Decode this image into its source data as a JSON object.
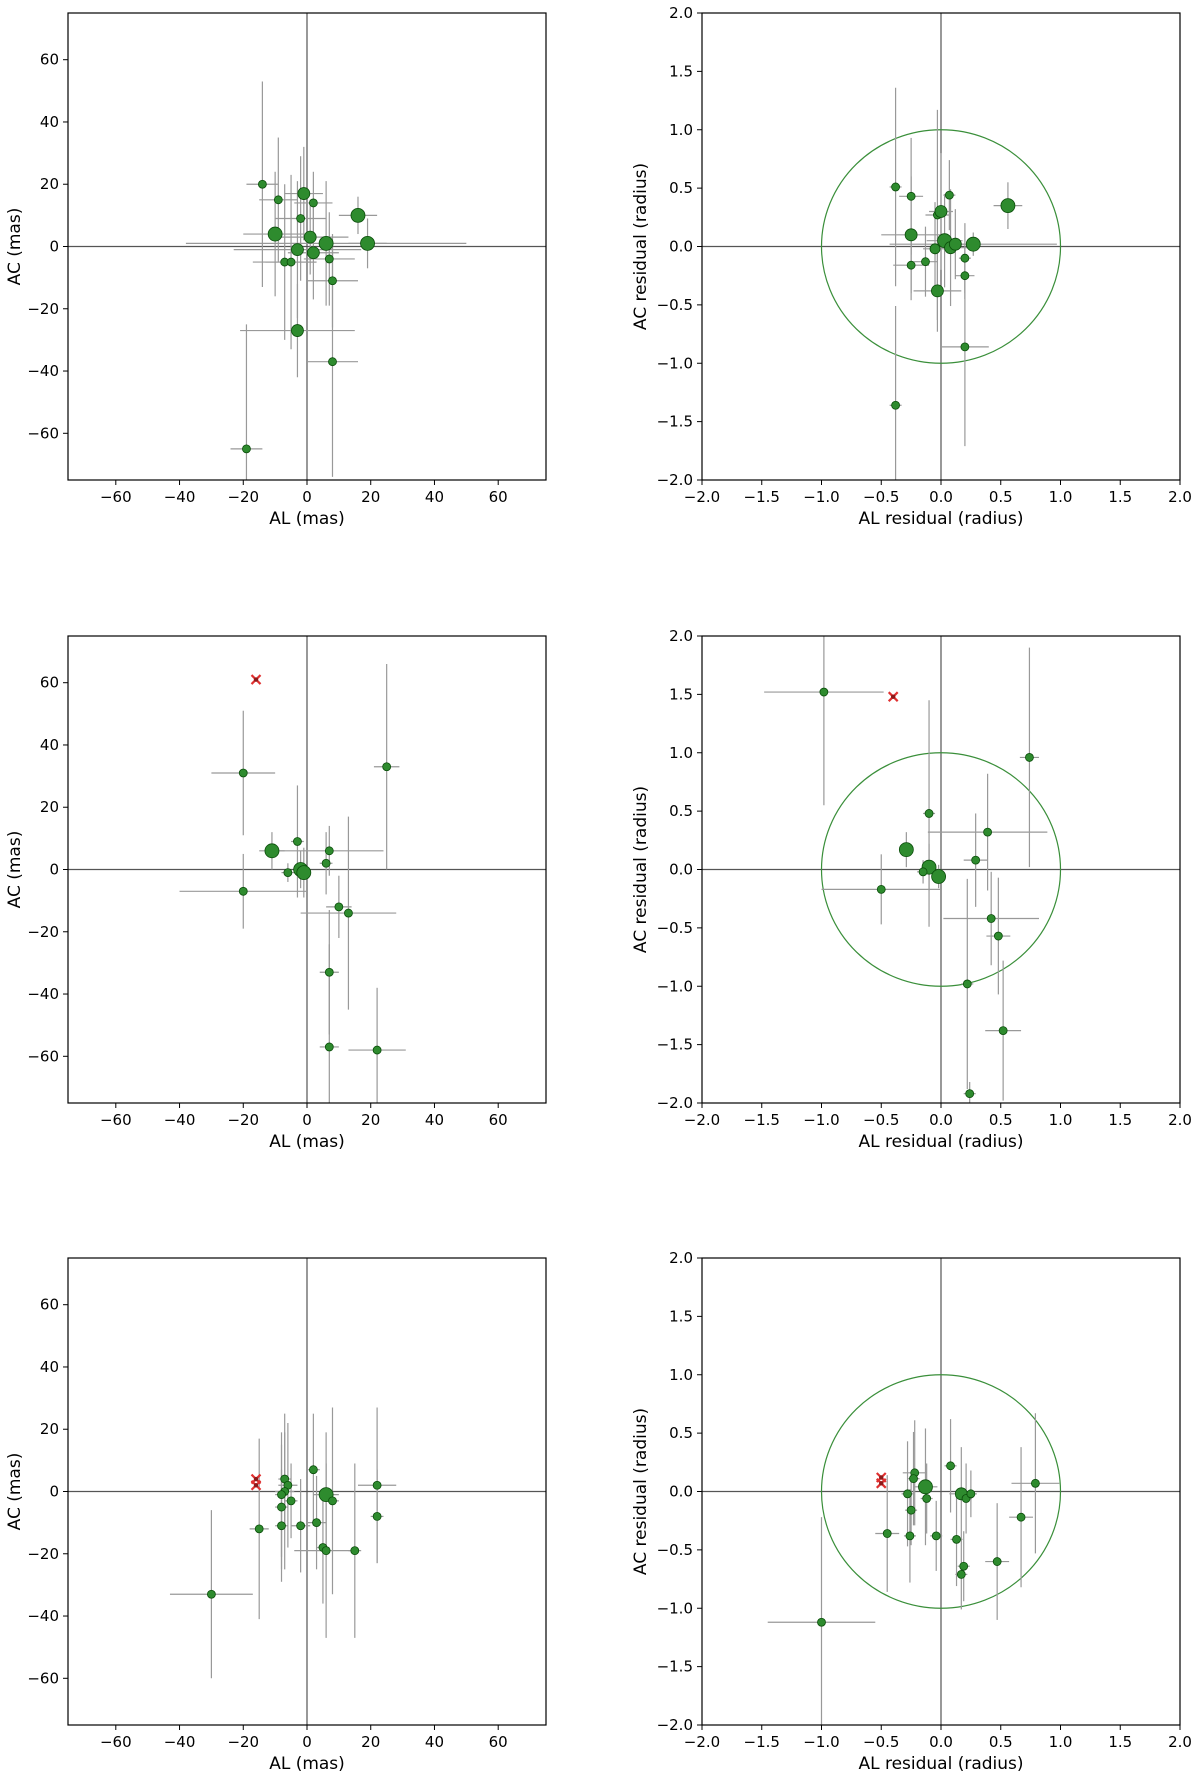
{
  "colors": {
    "point": "#2e8b2e",
    "point_edge": "#0a4d0a",
    "errorbar": "#999999",
    "circle": "#3a8f3a",
    "outlier": "#e03030",
    "zero_line": "#555555"
  },
  "chart_data": [
    {
      "type": "scatter",
      "name": "panel-1-left",
      "row": 0,
      "col": 0,
      "xlabel": "AL (mas)",
      "ylabel": "AC (mas)",
      "xlim": [
        -75,
        75
      ],
      "ylim": [
        -75,
        75
      ],
      "xticks": [
        -60,
        -40,
        -20,
        0,
        20,
        40,
        60
      ],
      "yticks": [
        -60,
        -40,
        -20,
        0,
        20,
        40,
        60
      ],
      "xtick_labels": [
        "−60",
        "−40",
        "−20",
        "0",
        "20",
        "40",
        "60"
      ],
      "ytick_labels": [
        "−60",
        "−40",
        "−20",
        "0",
        "20",
        "40",
        "60"
      ],
      "unit_circle": false,
      "points": [
        {
          "x": -14,
          "y": 20,
          "xerr": 5,
          "yerr": 33,
          "s": 4
        },
        {
          "x": -9,
          "y": 15,
          "xerr": 6,
          "yerr": 20,
          "s": 4
        },
        {
          "x": -10,
          "y": 4,
          "xerr": 10,
          "yerr": 20,
          "s": 7
        },
        {
          "x": -7,
          "y": -5,
          "xerr": 10,
          "yerr": 25,
          "s": 4
        },
        {
          "x": -5,
          "y": -5,
          "xerr": 8,
          "yerr": 28,
          "s": 4
        },
        {
          "x": -1,
          "y": 17,
          "xerr": 6,
          "yerr": 15,
          "s": 6
        },
        {
          "x": 2,
          "y": 14,
          "xerr": 6,
          "yerr": 10,
          "s": 4
        },
        {
          "x": -2,
          "y": 9,
          "xerr": 8,
          "yerr": 20,
          "s": 4
        },
        {
          "x": 1,
          "y": 3,
          "xerr": 12,
          "yerr": 12,
          "s": 6
        },
        {
          "x": -3,
          "y": -1,
          "xerr": 20,
          "yerr": 22,
          "s": 6
        },
        {
          "x": 2,
          "y": -2,
          "xerr": 8,
          "yerr": 15,
          "s": 6
        },
        {
          "x": 6,
          "y": 1,
          "xerr": 44,
          "yerr": 20,
          "s": 7
        },
        {
          "x": 7,
          "y": -4,
          "xerr": 8,
          "yerr": 15,
          "s": 4
        },
        {
          "x": 16,
          "y": 10,
          "xerr": 6,
          "yerr": 6,
          "s": 7
        },
        {
          "x": 19,
          "y": 1,
          "xerr": 6,
          "yerr": 8,
          "s": 7
        },
        {
          "x": 8,
          "y": -11,
          "xerr": 8,
          "yerr": 15,
          "s": 4
        },
        {
          "x": -3,
          "y": -27,
          "xerr": 18,
          "yerr": 15,
          "s": 6
        },
        {
          "x": 8,
          "y": -37,
          "xerr": 8,
          "yerr": 37,
          "s": 4
        },
        {
          "x": -19,
          "y": -65,
          "xerr": 5,
          "yerr": 40,
          "s": 4
        }
      ],
      "outliers": []
    },
    {
      "type": "scatter",
      "name": "panel-1-right",
      "row": 0,
      "col": 1,
      "xlabel": "AL residual (radius)",
      "ylabel": "AC residual (radius)",
      "xlim": [
        -2,
        2
      ],
      "ylim": [
        -2,
        2
      ],
      "xticks": [
        -2,
        -1.5,
        -1,
        -0.5,
        0,
        0.5,
        1,
        1.5,
        2
      ],
      "yticks": [
        -2,
        -1.5,
        -1,
        -0.5,
        0,
        0.5,
        1,
        1.5,
        2
      ],
      "xtick_labels": [
        "−2.0",
        "−1.5",
        "−1.0",
        "−0.5",
        "0.0",
        "0.5",
        "1.0",
        "1.5",
        "2.0"
      ],
      "ytick_labels": [
        "−2.0",
        "−1.5",
        "−1.0",
        "−0.5",
        "0.0",
        "0.5",
        "1.0",
        "1.5",
        "2.0"
      ],
      "unit_circle": true,
      "points": [
        {
          "x": -0.38,
          "y": 0.51,
          "xerr": 0.05,
          "yerr": 0.85,
          "s": 4
        },
        {
          "x": -0.25,
          "y": 0.43,
          "xerr": 0.1,
          "yerr": 0.5,
          "s": 4
        },
        {
          "x": -0.25,
          "y": 0.1,
          "xerr": 0.25,
          "yerr": 0.5,
          "s": 6
        },
        {
          "x": -0.25,
          "y": -0.16,
          "xerr": 0.15,
          "yerr": 0.3,
          "s": 4
        },
        {
          "x": -0.13,
          "y": -0.13,
          "xerr": 0.1,
          "yerr": 0.3,
          "s": 4
        },
        {
          "x": -0.05,
          "y": -0.02,
          "xerr": 0.1,
          "yerr": 0.4,
          "s": 5
        },
        {
          "x": -0.03,
          "y": 0.27,
          "xerr": 0.1,
          "yerr": 0.9,
          "s": 4
        },
        {
          "x": 0.0,
          "y": 0.3,
          "xerr": 0.1,
          "yerr": 0.5,
          "s": 6
        },
        {
          "x": 0.03,
          "y": 0.05,
          "xerr": 0.15,
          "yerr": 0.4,
          "s": 7
        },
        {
          "x": 0.07,
          "y": 0.44,
          "xerr": 0.05,
          "yerr": 0.3,
          "s": 4
        },
        {
          "x": 0.08,
          "y": -0.01,
          "xerr": 0.15,
          "yerr": 0.5,
          "s": 6
        },
        {
          "x": 0.12,
          "y": 0.02,
          "xerr": 0.15,
          "yerr": 0.3,
          "s": 6
        },
        {
          "x": -0.03,
          "y": -0.38,
          "xerr": 0.2,
          "yerr": 0.35,
          "s": 6
        },
        {
          "x": 0.2,
          "y": -0.1,
          "xerr": 0.05,
          "yerr": 0.3,
          "s": 4
        },
        {
          "x": 0.27,
          "y": 0.02,
          "xerr": 0.7,
          "yerr": 0.1,
          "s": 7
        },
        {
          "x": 0.2,
          "y": -0.25,
          "xerr": 0.08,
          "yerr": 0.2,
          "s": 4
        },
        {
          "x": 0.56,
          "y": 0.35,
          "xerr": 0.12,
          "yerr": 0.2,
          "s": 7
        },
        {
          "x": 0.2,
          "y": -0.86,
          "xerr": 0.2,
          "yerr": 0.85,
          "s": 4
        },
        {
          "x": -0.38,
          "y": -1.36,
          "xerr": 0.05,
          "yerr": 0.85,
          "s": 4
        }
      ],
      "outliers": []
    },
    {
      "type": "scatter",
      "name": "panel-2-left",
      "row": 1,
      "col": 0,
      "xlabel": "AL (mas)",
      "ylabel": "AC (mas)",
      "xlim": [
        -75,
        75
      ],
      "ylim": [
        -75,
        75
      ],
      "xticks": [
        -60,
        -40,
        -20,
        0,
        20,
        40,
        60
      ],
      "yticks": [
        -60,
        -40,
        -20,
        0,
        20,
        40,
        60
      ],
      "xtick_labels": [
        "−60",
        "−40",
        "−20",
        "0",
        "20",
        "40",
        "60"
      ],
      "ytick_labels": [
        "−60",
        "−40",
        "−20",
        "0",
        "20",
        "40",
        "60"
      ],
      "unit_circle": false,
      "points": [
        {
          "x": -20,
          "y": 31,
          "xerr": 10,
          "yerr": 20,
          "s": 4
        },
        {
          "x": 25,
          "y": 33,
          "xerr": 4,
          "yerr": 33,
          "s": 4
        },
        {
          "x": -3,
          "y": 9,
          "xerr": 2,
          "yerr": 18,
          "s": 4
        },
        {
          "x": 7,
          "y": 6,
          "xerr": 17,
          "yerr": 8,
          "s": 4
        },
        {
          "x": -11,
          "y": 6,
          "xerr": 4,
          "yerr": 6,
          "s": 7
        },
        {
          "x": 6,
          "y": 2,
          "xerr": 2,
          "yerr": 10,
          "s": 4
        },
        {
          "x": -2,
          "y": 0,
          "xerr": 2,
          "yerr": 6,
          "s": 7
        },
        {
          "x": -1,
          "y": -1,
          "xerr": 2,
          "yerr": 8,
          "s": 7
        },
        {
          "x": -6,
          "y": -1,
          "xerr": 2,
          "yerr": 3,
          "s": 4
        },
        {
          "x": -20,
          "y": -7,
          "xerr": 20,
          "yerr": 12,
          "s": 4
        },
        {
          "x": 10,
          "y": -12,
          "xerr": 4,
          "yerr": 10,
          "s": 4
        },
        {
          "x": 13,
          "y": -14,
          "xerr": 15,
          "yerr": 31,
          "s": 4
        },
        {
          "x": 7,
          "y": -33,
          "xerr": 3,
          "yerr": 20,
          "s": 4
        },
        {
          "x": 7,
          "y": -57,
          "xerr": 3,
          "yerr": 33,
          "s": 4
        },
        {
          "x": 22,
          "y": -58,
          "xerr": 9,
          "yerr": 20,
          "s": 4
        }
      ],
      "outliers": [
        {
          "x": -16,
          "y": 61
        }
      ]
    },
    {
      "type": "scatter",
      "name": "panel-2-right",
      "row": 1,
      "col": 1,
      "xlabel": "AL residual (radius)",
      "ylabel": "AC residual (radius)",
      "xlim": [
        -2,
        2
      ],
      "ylim": [
        -2,
        2
      ],
      "xticks": [
        -2,
        -1.5,
        -1,
        -0.5,
        0,
        0.5,
        1,
        1.5,
        2
      ],
      "yticks": [
        -2,
        -1.5,
        -1,
        -0.5,
        0,
        0.5,
        1,
        1.5,
        2
      ],
      "xtick_labels": [
        "−2.0",
        "−1.5",
        "−1.0",
        "−0.5",
        "0.0",
        "0.5",
        "1.0",
        "1.5",
        "2.0"
      ],
      "ytick_labels": [
        "−2.0",
        "−1.5",
        "−1.0",
        "−0.5",
        "0.0",
        "0.5",
        "1.0",
        "1.5",
        "2.0"
      ],
      "unit_circle": true,
      "points": [
        {
          "x": -0.98,
          "y": 1.52,
          "xerr": 0.5,
          "yerr": 0.97,
          "s": 4
        },
        {
          "x": 0.74,
          "y": 0.96,
          "xerr": 0.08,
          "yerr": 0.94,
          "s": 4
        },
        {
          "x": -0.1,
          "y": 0.48,
          "xerr": 0.05,
          "yerr": 0.97,
          "s": 4
        },
        {
          "x": 0.39,
          "y": 0.32,
          "xerr": 0.5,
          "yerr": 0.5,
          "s": 4
        },
        {
          "x": -0.29,
          "y": 0.17,
          "xerr": 0.05,
          "yerr": 0.15,
          "s": 7
        },
        {
          "x": 0.29,
          "y": 0.08,
          "xerr": 0.1,
          "yerr": 0.4,
          "s": 4
        },
        {
          "x": -0.1,
          "y": 0.02,
          "xerr": 0.05,
          "yerr": 0.2,
          "s": 7
        },
        {
          "x": -0.15,
          "y": -0.02,
          "xerr": 0.05,
          "yerr": 0.1,
          "s": 4
        },
        {
          "x": -0.02,
          "y": -0.06,
          "xerr": 0.05,
          "yerr": 0.1,
          "s": 7
        },
        {
          "x": -0.5,
          "y": -0.17,
          "xerr": 0.5,
          "yerr": 0.3,
          "s": 4
        },
        {
          "x": 0.42,
          "y": -0.42,
          "xerr": 0.4,
          "yerr": 0.4,
          "s": 4
        },
        {
          "x": 0.48,
          "y": -0.57,
          "xerr": 0.1,
          "yerr": 0.5,
          "s": 4
        },
        {
          "x": 0.22,
          "y": -0.98,
          "xerr": 0.05,
          "yerr": 0.9,
          "s": 4
        },
        {
          "x": 0.52,
          "y": -1.38,
          "xerr": 0.15,
          "yerr": 0.6,
          "s": 4
        },
        {
          "x": 0.24,
          "y": -1.92,
          "xerr": 0.05,
          "yerr": 0.1,
          "s": 4
        }
      ],
      "outliers": [
        {
          "x": -0.4,
          "y": 1.48
        }
      ]
    },
    {
      "type": "scatter",
      "name": "panel-3-left",
      "row": 2,
      "col": 0,
      "xlabel": "AL (mas)",
      "ylabel": "AC (mas)",
      "xlim": [
        -75,
        75
      ],
      "ylim": [
        -75,
        75
      ],
      "xticks": [
        -60,
        -40,
        -20,
        0,
        20,
        40,
        60
      ],
      "yticks": [
        -60,
        -40,
        -20,
        0,
        20,
        40,
        60
      ],
      "xtick_labels": [
        "−60",
        "−40",
        "−20",
        "0",
        "20",
        "40",
        "60"
      ],
      "ytick_labels": [
        "−60",
        "−40",
        "−20",
        "0",
        "20",
        "40",
        "60"
      ],
      "unit_circle": false,
      "points": [
        {
          "x": 2,
          "y": 7,
          "xerr": 2,
          "yerr": 18,
          "s": 4
        },
        {
          "x": -7,
          "y": 4,
          "xerr": 2,
          "yerr": 15,
          "s": 4
        },
        {
          "x": -6,
          "y": 2,
          "xerr": 3,
          "yerr": 20,
          "s": 4
        },
        {
          "x": -7,
          "y": 0,
          "xerr": 3,
          "yerr": 25,
          "s": 4
        },
        {
          "x": -8,
          "y": -1,
          "xerr": 2,
          "yerr": 20,
          "s": 4
        },
        {
          "x": -5,
          "y": -3,
          "xerr": 2,
          "yerr": 12,
          "s": 4
        },
        {
          "x": -8,
          "y": -5,
          "xerr": 2,
          "yerr": 20,
          "s": 4
        },
        {
          "x": 6,
          "y": -1,
          "xerr": 4,
          "yerr": 20,
          "s": 7
        },
        {
          "x": 8,
          "y": -3,
          "xerr": 2,
          "yerr": 30,
          "s": 4
        },
        {
          "x": 22,
          "y": 2,
          "xerr": 6,
          "yerr": 25,
          "s": 4
        },
        {
          "x": 3,
          "y": -10,
          "xerr": 3,
          "yerr": 15,
          "s": 4
        },
        {
          "x": -2,
          "y": -11,
          "xerr": 3,
          "yerr": 15,
          "s": 4
        },
        {
          "x": -8,
          "y": -11,
          "xerr": 2,
          "yerr": 18,
          "s": 4
        },
        {
          "x": -15,
          "y": -12,
          "xerr": 3,
          "yerr": 29,
          "s": 4
        },
        {
          "x": 22,
          "y": -8,
          "xerr": 2,
          "yerr": 15,
          "s": 4
        },
        {
          "x": 5,
          "y": -18,
          "xerr": 2,
          "yerr": 18,
          "s": 4
        },
        {
          "x": 6,
          "y": -19,
          "xerr": 10,
          "yerr": 28,
          "s": 4
        },
        {
          "x": 15,
          "y": -19,
          "xerr": 2,
          "yerr": 28,
          "s": 4
        },
        {
          "x": -30,
          "y": -33,
          "xerr": 13,
          "yerr": 27,
          "s": 4
        }
      ],
      "outliers": [
        {
          "x": -16,
          "y": 4
        },
        {
          "x": -16,
          "y": 2
        }
      ]
    },
    {
      "type": "scatter",
      "name": "panel-3-right",
      "row": 2,
      "col": 1,
      "xlabel": "AL residual (radius)",
      "ylabel": "AC residual (radius)",
      "xlim": [
        -2,
        2
      ],
      "ylim": [
        -2,
        2
      ],
      "xticks": [
        -2,
        -1.5,
        -1,
        -0.5,
        0,
        0.5,
        1,
        1.5,
        2
      ],
      "yticks": [
        -2,
        -1.5,
        -1,
        -0.5,
        0,
        0.5,
        1,
        1.5,
        2
      ],
      "xtick_labels": [
        "−2.0",
        "−1.5",
        "−1.0",
        "−0.5",
        "0.0",
        "0.5",
        "1.0",
        "1.5",
        "2.0"
      ],
      "ytick_labels": [
        "−2.0",
        "−1.5",
        "−1.0",
        "−0.5",
        "0.0",
        "0.5",
        "1.0",
        "1.5",
        "2.0"
      ],
      "unit_circle": true,
      "points": [
        {
          "x": 0.08,
          "y": 0.22,
          "xerr": 0.05,
          "yerr": 0.4,
          "s": 4
        },
        {
          "x": -0.22,
          "y": 0.16,
          "xerr": 0.1,
          "yerr": 0.45,
          "s": 4
        },
        {
          "x": -0.23,
          "y": 0.11,
          "xerr": 0.05,
          "yerr": 0.4,
          "s": 4
        },
        {
          "x": -0.13,
          "y": 0.04,
          "xerr": 0.1,
          "yerr": 0.5,
          "s": 7
        },
        {
          "x": -0.28,
          "y": -0.02,
          "xerr": 0.05,
          "yerr": 0.45,
          "s": 4
        },
        {
          "x": 0.17,
          "y": -0.02,
          "xerr": 0.1,
          "yerr": 0.4,
          "s": 6
        },
        {
          "x": 0.21,
          "y": -0.06,
          "xerr": 0.05,
          "yerr": 0.3,
          "s": 4
        },
        {
          "x": 0.25,
          "y": -0.02,
          "xerr": 0.05,
          "yerr": 0.2,
          "s": 4
        },
        {
          "x": -0.12,
          "y": -0.06,
          "xerr": 0.05,
          "yerr": 0.3,
          "s": 4
        },
        {
          "x": 0.79,
          "y": 0.07,
          "xerr": 0.2,
          "yerr": 0.6,
          "s": 4
        },
        {
          "x": -0.25,
          "y": -0.16,
          "xerr": 0.05,
          "yerr": 0.3,
          "s": 4
        },
        {
          "x": -0.45,
          "y": -0.36,
          "xerr": 0.1,
          "yerr": 0.5,
          "s": 4
        },
        {
          "x": -0.26,
          "y": -0.38,
          "xerr": 0.05,
          "yerr": 0.4,
          "s": 4
        },
        {
          "x": -0.04,
          "y": -0.38,
          "xerr": 0.05,
          "yerr": 0.3,
          "s": 4
        },
        {
          "x": 0.13,
          "y": -0.41,
          "xerr": 0.05,
          "yerr": 0.4,
          "s": 4
        },
        {
          "x": 0.67,
          "y": -0.22,
          "xerr": 0.1,
          "yerr": 0.6,
          "s": 4
        },
        {
          "x": 0.47,
          "y": -0.6,
          "xerr": 0.1,
          "yerr": 0.5,
          "s": 4
        },
        {
          "x": 0.19,
          "y": -0.64,
          "xerr": 0.05,
          "yerr": 0.3,
          "s": 4
        },
        {
          "x": 0.17,
          "y": -0.71,
          "xerr": 0.05,
          "yerr": 0.3,
          "s": 4
        },
        {
          "x": -1.0,
          "y": -1.12,
          "xerr": 0.45,
          "yerr": 0.9,
          "s": 4
        }
      ],
      "outliers": [
        {
          "x": -0.5,
          "y": 0.12
        },
        {
          "x": -0.5,
          "y": 0.07
        }
      ]
    }
  ]
}
